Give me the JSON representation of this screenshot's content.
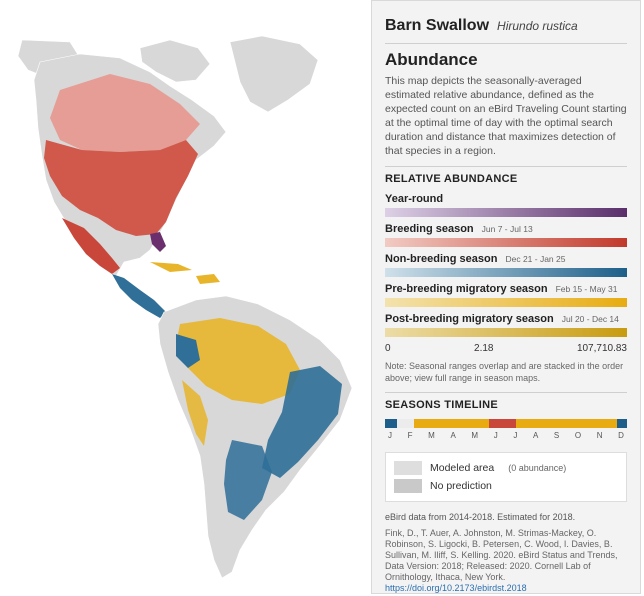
{
  "panel": {
    "species_name": "Barn Swallow",
    "scientific_name": "Hirundo rustica",
    "heading": "Abundance",
    "description": "This map depicts the seasonally-averaged estimated relative abundance, defined as the expected count on an eBird Traveling Count starting at the optimal time of day with the optimal search duration and distance that maximizes detection of that species in a region.",
    "relative_abundance_title": "RELATIVE ABUNDANCE",
    "seasons": [
      {
        "label": "Year-round",
        "range": "",
        "colors": [
          "#ddd0e6",
          "#5a2e6b"
        ]
      },
      {
        "label": "Breeding season",
        "range": "Jun 7 - Jul 13",
        "colors": [
          "#f1cbc3",
          "#c2392b"
        ]
      },
      {
        "label": "Non-breeding season",
        "range": "Dec 21 - Jan 25",
        "colors": [
          "#cfe0ea",
          "#1d5f8a"
        ]
      },
      {
        "label": "Pre-breeding migratory season",
        "range": "Feb 15 - May 31",
        "colors": [
          "#f3e2ad",
          "#e8ac12"
        ]
      },
      {
        "label": "Post-breeding migratory season",
        "range": "Jul 20 - Dec 14",
        "colors": [
          "#ecdca6",
          "#c89b10"
        ]
      }
    ],
    "scale": {
      "min": "0",
      "mid": "2.18",
      "max": "107,710.83"
    },
    "note": "Note: Seasonal ranges overlap and are stacked in the order above; view full range in season maps.",
    "timeline_title": "SEASONS TIMELINE",
    "timeline_segments": [
      {
        "start": 0.0,
        "end": 0.05,
        "color": "#1d5f8a"
      },
      {
        "start": 0.05,
        "end": 0.12,
        "color": "#ececec"
      },
      {
        "start": 0.12,
        "end": 0.43,
        "color": "#e8ac12"
      },
      {
        "start": 0.43,
        "end": 0.54,
        "color": "#c9463a"
      },
      {
        "start": 0.54,
        "end": 0.96,
        "color": "#e8ac12"
      },
      {
        "start": 0.96,
        "end": 1.0,
        "color": "#1d5f8a"
      }
    ],
    "months": [
      "J",
      "F",
      "M",
      "A",
      "M",
      "J",
      "J",
      "A",
      "S",
      "O",
      "N",
      "D"
    ],
    "legend": {
      "modeled_label": "Modeled area",
      "modeled_sub": "(0 abundance)",
      "modeled_color": "#dedede",
      "no_prediction_label": "No prediction",
      "no_prediction_color": "#c9c9c9"
    },
    "data_note": "eBird data from 2014-2018. Estimated for 2018.",
    "citation": "Fink, D., T. Auer, A. Johnston, M. Strimas-Mackey, O. Robinson, S. Ligocki, B. Petersen, C. Wood, I. Davies, B. Sullivan, M. Iliff, S. Kelling. 2020. eBird Status and Trends, Data Version: 2018; Released: 2020. Cornell Lab of Ornithology, Ithaca, New York.",
    "doi": "https://doi.org/10.2173/ebirdst.2018"
  },
  "map_colors": {
    "land": "#d8d8d8",
    "breeding": "#cf4b3c",
    "breeding_light": "#e7938a",
    "nonbreeding": "#2f6f98",
    "migration": "#e8b52a",
    "purple": "#6b2f6e"
  }
}
